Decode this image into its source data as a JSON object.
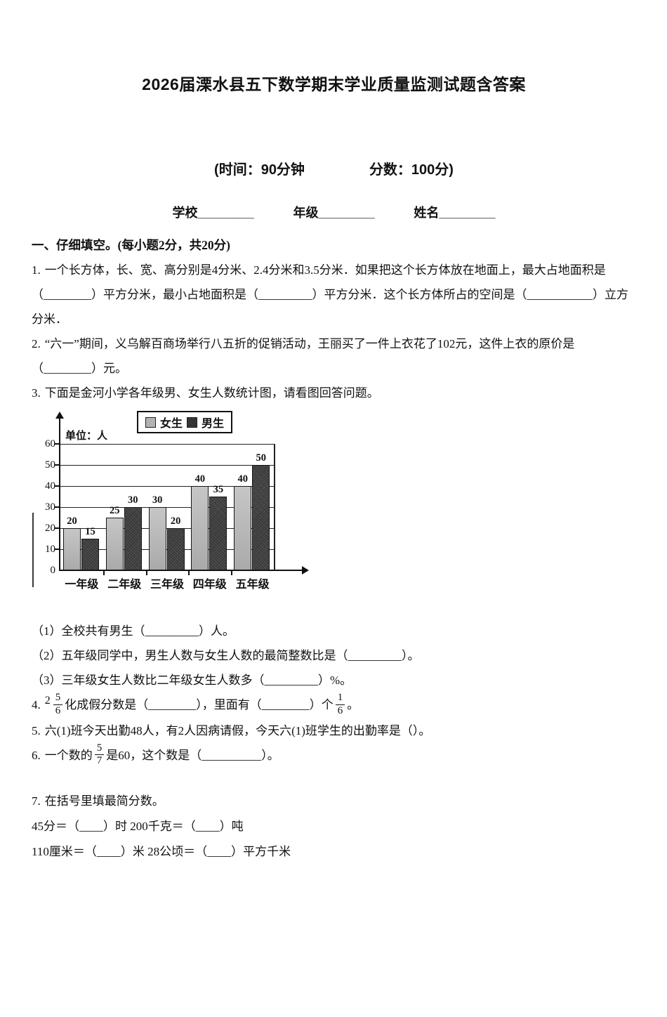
{
  "header": {
    "title": "2026届溧水县五下数学期末学业质量监测试题含答案",
    "time_label": "(时间：90分钟",
    "score_label": "分数：100分)",
    "school_field": "学校________",
    "grade_field": "年级________",
    "name_field": "姓名________"
  },
  "section1": {
    "heading": "一、仔细填空。(每小题2分，共20分)",
    "q1": {
      "num": "1.",
      "text": "一个长方体，长、宽、高分别是4分米、2.4分米和3.5分米．如果把这个长方体放在地面上，最大占地面积是（________）平方分米，最小占地面积是（_________）平方分米．这个长方体所占的空间是（___________）立方分米．"
    },
    "q2": {
      "num": "2.",
      "text": "“六一”期间，义乌解百商场举行八五折的促销活动，王丽买了一件上衣花了102元，这件上衣的原价是（________）元。"
    },
    "q3": {
      "num": "3.",
      "text": "下面是金河小学各年级男、女生人数统计图，请看图回答问题。",
      "sub1": "（1）全校共有男生（_________）人。",
      "sub2": "（2）五年级同学中，男生人数与女生人数的最简整数比是（_________）。",
      "sub3": "（3）三年级女生人数比二年级女生人数多（_________）%。"
    },
    "q4": {
      "num": "4.",
      "mixed_whole": "2",
      "mixed_num": "5",
      "mixed_den": "6",
      "text1": "化成假分数是（________），里面有（________）个",
      "frac_num": "1",
      "frac_den": "6",
      "text2": "。"
    },
    "q5": {
      "num": "5.",
      "text": "六(1)班今天出勤48人，有2人因病请假，今天六(1)班学生的出勤率是（）。"
    },
    "q6": {
      "num": "6.",
      "text1": "一个数的",
      "frac_num": "5",
      "frac_den": "7",
      "text2": "是60，这个数是（__________）。"
    },
    "q7": {
      "num": "7.",
      "heading": "在括号里填最简分数。",
      "line1": "45分＝（____）时 200千克＝（____）吨",
      "line2": "110厘米＝（____）米 28公顷＝（____）平方千米"
    }
  },
  "chart_data": {
    "type": "bar",
    "title": "金河小学各年级男、女生人数统计图",
    "unit_label": "单位：人",
    "categories": [
      "一年级",
      "二年级",
      "三年级",
      "四年级",
      "五年级"
    ],
    "series": [
      {
        "name": "女生",
        "values": [
          20,
          25,
          30,
          40,
          40
        ],
        "color": "#b3b3b3"
      },
      {
        "name": "男生",
        "values": [
          15,
          30,
          20,
          35,
          50
        ],
        "color": "#3c3c3c"
      }
    ],
    "ylim": [
      0,
      60
    ],
    "yticks": [
      0,
      10,
      20,
      30,
      40,
      50,
      60
    ],
    "grid": true,
    "legend_position": "top-center"
  }
}
